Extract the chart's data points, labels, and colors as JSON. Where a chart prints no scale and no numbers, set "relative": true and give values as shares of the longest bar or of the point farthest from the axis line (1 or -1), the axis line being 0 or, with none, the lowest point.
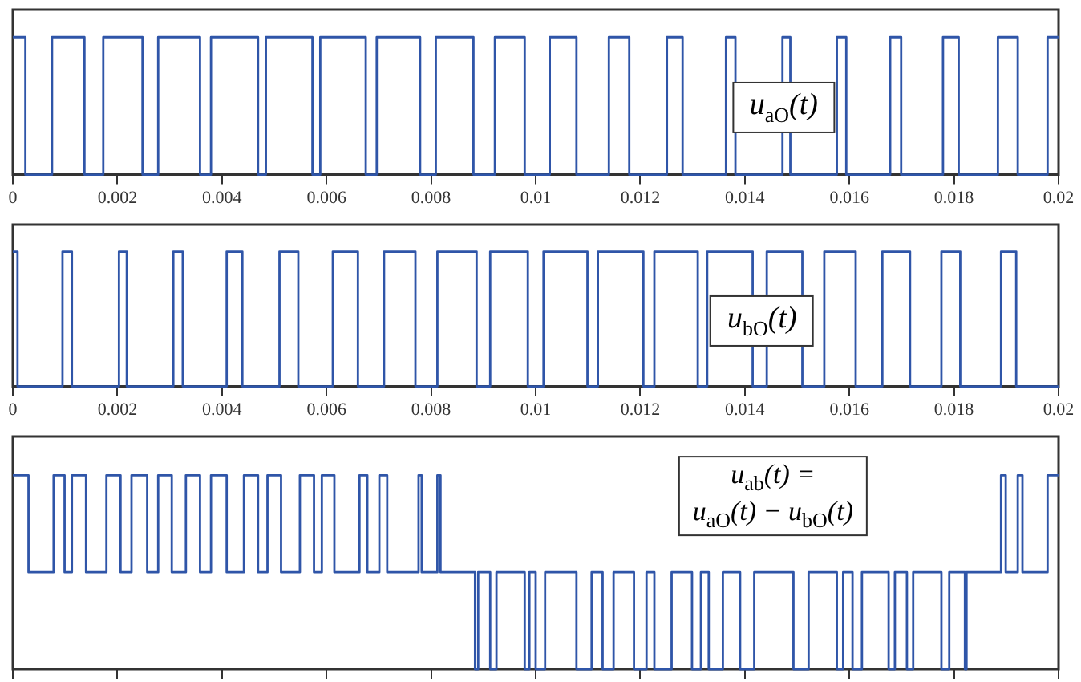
{
  "chart_data": [
    {
      "type": "line",
      "relative": true,
      "xlim": [
        0,
        0.02
      ],
      "tick_labels": "x",
      "grid": false,
      "legend": false,
      "line_style": "solid",
      "marker": "none",
      "xticks": [
        0,
        0.002,
        0.004,
        0.006,
        0.008,
        0.01,
        0.012,
        0.014,
        0.016,
        0.018,
        0.02
      ],
      "annotations": [
        "u$_{aO}$(t)"
      ],
      "series": [
        {
          "color": "#2f55a8",
          "x": [
            0,
            0.00024,
            0.00024,
            0.00075,
            0.00075,
            0.00137,
            0.00137,
            0.00173,
            0.00173,
            0.00248,
            0.00248,
            0.00278,
            0.00278,
            0.00358,
            0.00358,
            0.00379,
            0.00379,
            0.00469,
            0.00469,
            0.00484,
            0.00484,
            0.00573,
            0.00573,
            0.00588,
            0.00588,
            0.00675,
            0.00675,
            0.00696,
            0.00696,
            0.00779,
            0.00779,
            0.00809,
            0.00809,
            0.00881,
            0.00881,
            0.00922,
            0.00922,
            0.00979,
            0.00979,
            0.01027,
            0.01027,
            0.01078,
            0.01078,
            0.0114,
            0.0114,
            0.01179,
            0.01179,
            0.01251,
            0.01251,
            0.01281,
            0.01281,
            0.01364,
            0.01364,
            0.01382,
            0.01382,
            0.01472,
            0.01472,
            0.01487,
            0.01487,
            0.01576,
            0.01576,
            0.01594,
            0.01594,
            0.01678,
            0.01678,
            0.01699,
            0.01699,
            0.01779,
            0.01779,
            0.01809,
            0.01809,
            0.01884,
            0.01884,
            0.01922,
            0.01922,
            0.01979,
            0.01979,
            0.02
          ],
          "values": [
            1,
            1,
            0,
            0,
            1,
            1,
            0,
            0,
            1,
            1,
            0,
            0,
            1,
            1,
            0,
            0,
            1,
            1,
            0,
            0,
            1,
            1,
            0,
            0,
            1,
            1,
            0,
            0,
            1,
            1,
            0,
            0,
            1,
            1,
            0,
            0,
            1,
            1,
            0,
            0,
            1,
            1,
            0,
            0,
            1,
            1,
            0,
            0,
            1,
            1,
            0,
            0,
            1,
            1,
            0,
            0,
            1,
            1,
            0,
            0,
            1,
            1,
            0,
            0,
            1,
            1,
            0,
            0,
            1,
            1,
            0,
            0,
            1,
            1,
            0,
            0,
            1,
            1
          ]
        }
      ]
    },
    {
      "type": "line",
      "relative": true,
      "xlim": [
        0,
        0.02
      ],
      "tick_labels": "x",
      "grid": false,
      "legend": false,
      "line_style": "solid",
      "marker": "none",
      "xticks": [
        0,
        0.002,
        0.004,
        0.006,
        0.008,
        0.01,
        0.012,
        0.014,
        0.016,
        0.018,
        0.02
      ],
      "annotations": [
        "u$_{bO}$(t)"
      ],
      "series": [
        {
          "color": "#2f55a8",
          "x": [
            0,
            9e-05,
            9e-05,
            0.00095,
            0.00095,
            0.00113,
            0.00113,
            0.00203,
            0.00203,
            0.00218,
            0.00218,
            0.00307,
            0.00307,
            0.00325,
            0.00325,
            0.00409,
            0.00409,
            0.00439,
            0.00439,
            0.0051,
            0.0051,
            0.00546,
            0.00546,
            0.00612,
            0.00612,
            0.0066,
            0.0066,
            0.0071,
            0.0071,
            0.0077,
            0.0077,
            0.00812,
            0.00812,
            0.00887,
            0.00887,
            0.00913,
            0.00913,
            0.00985,
            0.00985,
            0.01015,
            0.01015,
            0.01099,
            0.01099,
            0.01119,
            0.01119,
            0.01206,
            0.01206,
            0.01227,
            0.01227,
            0.0131,
            0.0131,
            0.01328,
            0.01328,
            0.01415,
            0.01415,
            0.01442,
            0.01442,
            0.0151,
            0.0151,
            0.01552,
            0.01552,
            0.01612,
            0.01612,
            0.01663,
            0.01663,
            0.01716,
            0.01716,
            0.01776,
            0.01776,
            0.01812,
            0.01812,
            0.0189,
            0.0189,
            0.01919,
            0.01919,
            0.02
          ],
          "values": [
            1,
            1,
            0,
            0,
            1,
            1,
            0,
            0,
            1,
            1,
            0,
            0,
            1,
            1,
            0,
            0,
            1,
            1,
            0,
            0,
            1,
            1,
            0,
            0,
            1,
            1,
            0,
            0,
            1,
            1,
            0,
            0,
            1,
            1,
            0,
            0,
            1,
            1,
            0,
            0,
            1,
            1,
            0,
            0,
            1,
            1,
            0,
            0,
            1,
            1,
            0,
            0,
            1,
            1,
            0,
            0,
            1,
            1,
            0,
            0,
            1,
            1,
            0,
            0,
            1,
            1,
            0,
            0,
            1,
            1,
            0,
            0,
            1,
            1,
            0,
            0
          ]
        }
      ]
    },
    {
      "type": "line",
      "relative": true,
      "xlim": [
        0,
        0.02
      ],
      "tick_labels": false,
      "grid": false,
      "legend": false,
      "line_style": "solid",
      "marker": "none",
      "xticks": [
        0,
        0.002,
        0.004,
        0.006,
        0.008,
        0.01,
        0.012,
        0.014,
        0.016,
        0.018,
        0.02
      ],
      "annotations": [
        "u$_{ab}$(t) =\nu$_{aO}$(t) − u$_{bO}$(t)"
      ],
      "series": [
        {
          "color": "#2f55a8",
          "x": [
            0,
            0.0003,
            0.0003,
            0.00078,
            0.00078,
            0.00099,
            0.00099,
            0.00113,
            0.00113,
            0.0014,
            0.0014,
            0.00179,
            0.00179,
            0.00206,
            0.00206,
            0.00227,
            0.00227,
            0.00257,
            0.00257,
            0.00278,
            0.00278,
            0.00304,
            0.00304,
            0.00331,
            0.00331,
            0.00358,
            0.00358,
            0.00379,
            0.00379,
            0.00409,
            0.00409,
            0.00442,
            0.00442,
            0.00469,
            0.00469,
            0.00487,
            0.00487,
            0.00513,
            0.00513,
            0.00549,
            0.00549,
            0.00576,
            0.00576,
            0.00591,
            0.00591,
            0.00615,
            0.00615,
            0.00663,
            0.00663,
            0.00678,
            0.00678,
            0.00701,
            0.00701,
            0.00716,
            0.00716,
            0.00776,
            0.00776,
            0.00782,
            0.00782,
            0.00812,
            0.00812,
            0.00818,
            0.00818,
            0.00884,
            0.00884,
            0.0089,
            0.0089,
            0.00913,
            0.00913,
            0.00925,
            0.00925,
            0.00979,
            0.00979,
            0.00988,
            0.00988,
            0.01,
            0.01,
            0.01018,
            0.01018,
            0.01078,
            0.01078,
            0.01107,
            0.01107,
            0.01128,
            0.01128,
            0.01149,
            0.01149,
            0.01188,
            0.01188,
            0.01212,
            0.01212,
            0.01227,
            0.01227,
            0.0126,
            0.0126,
            0.01299,
            0.01299,
            0.01316,
            0.01316,
            0.01331,
            0.01331,
            0.01358,
            0.01358,
            0.01391,
            0.01391,
            0.01418,
            0.01418,
            0.01493,
            0.01493,
            0.01522,
            0.01522,
            0.01576,
            0.01576,
            0.01588,
            0.01588,
            0.01606,
            0.01606,
            0.01624,
            0.01624,
            0.01675,
            0.01675,
            0.01687,
            0.01687,
            0.0171,
            0.0171,
            0.01722,
            0.01722,
            0.01776,
            0.01776,
            0.01791,
            0.01791,
            0.01821,
            0.01821,
            0.01824,
            0.01824,
            0.0189,
            0.0189,
            0.01899,
            0.01899,
            0.01922,
            0.01922,
            0.01931,
            0.01931,
            0.01979,
            0.01979,
            0.02
          ],
          "values": [
            1,
            1,
            0.5,
            0.5,
            1,
            1,
            0.5,
            0.5,
            1,
            1,
            0.5,
            0.5,
            1,
            1,
            0.5,
            0.5,
            1,
            1,
            0.5,
            0.5,
            1,
            1,
            0.5,
            0.5,
            1,
            1,
            0.5,
            0.5,
            1,
            1,
            0.5,
            0.5,
            1,
            1,
            0.5,
            0.5,
            1,
            1,
            0.5,
            0.5,
            1,
            1,
            0.5,
            0.5,
            1,
            1,
            0.5,
            0.5,
            1,
            1,
            0.5,
            0.5,
            1,
            1,
            0.5,
            0.5,
            1,
            1,
            0.5,
            0.5,
            1,
            1,
            0.5,
            0.5,
            0,
            0,
            0.5,
            0.5,
            0,
            0,
            0.5,
            0.5,
            0,
            0,
            0.5,
            0.5,
            0,
            0,
            0.5,
            0.5,
            0,
            0,
            0.5,
            0.5,
            0,
            0,
            0.5,
            0.5,
            0,
            0,
            0.5,
            0.5,
            0,
            0,
            0.5,
            0.5,
            0,
            0,
            0.5,
            0.5,
            0,
            0,
            0.5,
            0.5,
            0,
            0,
            0.5,
            0.5,
            0,
            0,
            0.5,
            0.5,
            0,
            0,
            0.5,
            0.5,
            0,
            0,
            0.5,
            0.5,
            0,
            0,
            0.5,
            0.5,
            0,
            0,
            0.5,
            0.5,
            0,
            0,
            0.5,
            0.5,
            0,
            0,
            0.5,
            0.5,
            1,
            1,
            0.5,
            0.5,
            1,
            1,
            0.5,
            0.5,
            1,
            1
          ]
        }
      ]
    }
  ]
}
